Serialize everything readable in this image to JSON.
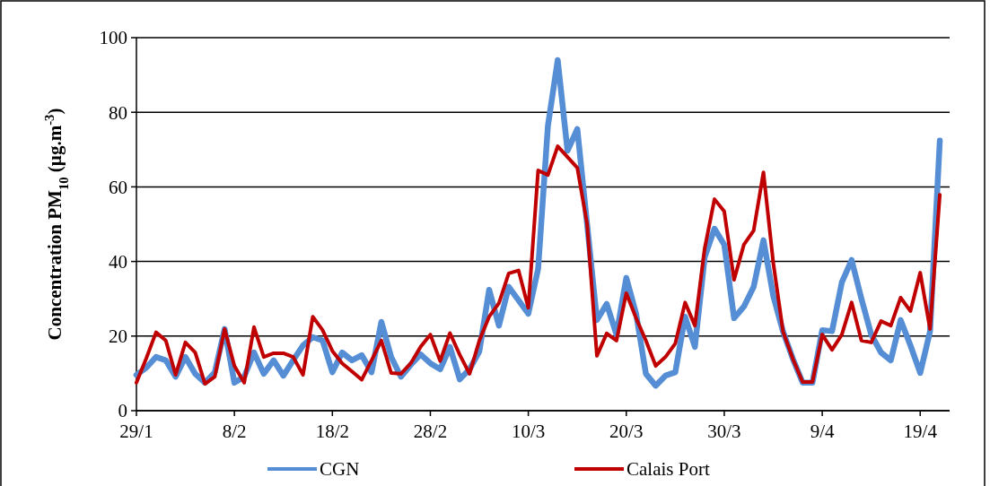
{
  "chart_data": {
    "type": "line",
    "ylabel": "Concentration PM$_{10}$ (µg.m$^{-3}$)",
    "x": [
      "--01-29",
      "--01-30",
      "--01-31",
      "--02-01",
      "--02-02",
      "--02-03",
      "--02-04",
      "--02-05",
      "--02-06",
      "--02-07",
      "--02-08",
      "--02-09",
      "--02-10",
      "--02-11",
      "--02-12",
      "--02-13",
      "--02-14",
      "--02-15",
      "--02-16",
      "--02-17",
      "--02-18",
      "--02-19",
      "--02-20",
      "--02-21",
      "--02-22",
      "--02-23",
      "--02-24",
      "--02-25",
      "--02-26",
      "--02-27",
      "--02-28",
      "--03-01",
      "--03-02",
      "--03-03",
      "--03-04",
      "--03-05",
      "--03-06",
      "--03-07",
      "--03-08",
      "--03-09",
      "--03-10",
      "--03-11",
      "--03-12",
      "--03-13",
      "--03-14",
      "--03-15",
      "--03-16",
      "--03-17",
      "--03-18",
      "--03-19",
      "--03-20",
      "--03-21",
      "--03-22",
      "--03-23",
      "--03-24",
      "--03-25",
      "--03-26",
      "--03-27",
      "--03-28",
      "--03-29",
      "--03-30",
      "--03-31",
      "--04-01",
      "--04-02",
      "--04-03",
      "--04-04",
      "--04-05",
      "--04-06",
      "--04-07",
      "--04-08",
      "--04-09",
      "--04-10",
      "--04-11",
      "--04-12",
      "--04-13",
      "--04-14",
      "--04-15",
      "--04-16",
      "--04-17",
      "--04-18",
      "--04-19",
      "--04-20",
      "--04-21"
    ],
    "series": [
      {
        "name": "CGN",
        "color": "#558ed5",
        "values": [
          9.6,
          11.5,
          14.4,
          13.5,
          9.1,
          14.4,
          9.9,
          7.5,
          10.3,
          21.9,
          7.5,
          9.1,
          15.6,
          9.9,
          13.5,
          9.4,
          13.5,
          17.5,
          19.7,
          18.8,
          10.3,
          15.6,
          13.5,
          14.9,
          10.3,
          23.8,
          14.4,
          9.1,
          12.3,
          15.1,
          12.7,
          11.1,
          17.1,
          8.4,
          11.1,
          15.9,
          32.4,
          22.8,
          33.2,
          29.6,
          26,
          38,
          76.4,
          94,
          69.7,
          75.5,
          50,
          24.3,
          28.6,
          20.4,
          35.6,
          26,
          9.9,
          6.7,
          9.4,
          10.3,
          25.2,
          17.1,
          41.1,
          48.8,
          44.5,
          24.8,
          27.9,
          33.2,
          45.7,
          30.8,
          21.2,
          13.9,
          7.5,
          7.5,
          21.6,
          21.3,
          34.4,
          40.4,
          30,
          20.4,
          15.6,
          13.5,
          24.3,
          17.5,
          10.1,
          21.2,
          72.4
        ]
      },
      {
        "name": "Calais Port",
        "color": "#c00000",
        "values": [
          7.5,
          14,
          21,
          18.8,
          9.6,
          18.3,
          15.6,
          7.2,
          9.1,
          21.9,
          12,
          7.5,
          22.4,
          14.4,
          15.4,
          15.4,
          14.4,
          9.6,
          25.2,
          21.6,
          16,
          12.7,
          10.5,
          8.3,
          13.5,
          18.8,
          10.1,
          9.9,
          12.7,
          17.1,
          20.4,
          13.3,
          20.8,
          15,
          9.9,
          18.8,
          25.2,
          28.8,
          36.8,
          37.6,
          27.6,
          64.4,
          63.2,
          70.9,
          68,
          65.1,
          50,
          14.7,
          20.7,
          18.8,
          31.5,
          24.8,
          18.8,
          12,
          14.4,
          18,
          29,
          22.8,
          43.5,
          56.7,
          53.4,
          35.1,
          44.5,
          48.3,
          63.9,
          39.7,
          21.2,
          13.9,
          7.7,
          7.7,
          20.4,
          16.3,
          20.4,
          29,
          18.8,
          18.3,
          24,
          22.8,
          30.3,
          26.7,
          37,
          21.9,
          57.9
        ]
      }
    ],
    "xlim": [
      "--01-29",
      "--04-22"
    ],
    "xticks": [
      {
        "value": "--01-29",
        "label": "29/1"
      },
      {
        "value": "--02-08",
        "label": "8/2"
      },
      {
        "value": "--02-18",
        "label": "18/2"
      },
      {
        "value": "--02-28",
        "label": "28/2"
      },
      {
        "value": "--03-10",
        "label": "10/3"
      },
      {
        "value": "--03-20",
        "label": "20/3"
      },
      {
        "value": "--03-30",
        "label": "30/3"
      },
      {
        "value": "--04-09",
        "label": "9/4"
      },
      {
        "value": "--04-19",
        "label": "19/4"
      }
    ],
    "ylim": [
      0,
      100
    ],
    "yticks": [
      0,
      20,
      40,
      60,
      80,
      100
    ],
    "grid": "y",
    "legend": "bottom",
    "marker": "none",
    "line_style": "solid"
  }
}
